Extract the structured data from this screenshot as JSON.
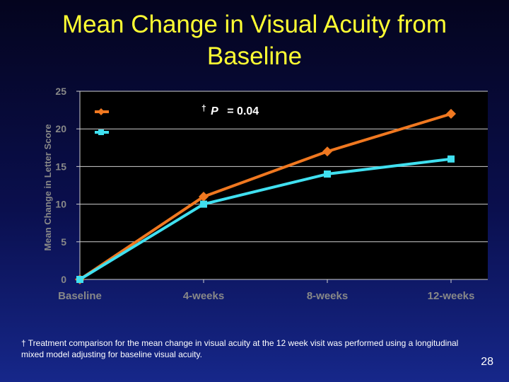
{
  "slide": {
    "title_line1": "Mean Change in Visual Acuity from",
    "title_line2": "Baseline",
    "footnote": "† Treatment comparison for the mean change in visual acuity at the 12 week visit was performed using a longitudinal mixed model adjusting for baseline visual acuity.",
    "page_number": "28"
  },
  "chart_data": {
    "type": "line",
    "categories": [
      "Baseline",
      "4-weeks",
      "8-weeks",
      "12-weeks"
    ],
    "series": [
      {
        "values": [
          0,
          11,
          17,
          22
        ],
        "color": "#f07820",
        "marker": "diamond"
      },
      {
        "values": [
          0,
          10,
          14,
          16
        ],
        "color": "#40e0f0",
        "marker": "square"
      }
    ],
    "ylabel": "Mean Change in Letter Score",
    "ylim": [
      0,
      25
    ],
    "yticks": [
      0,
      5,
      10,
      15,
      20,
      25
    ],
    "annotation": {
      "dagger": "†",
      "p_label": "P",
      "p_value": "= 0.04"
    },
    "grid": true,
    "legend": "top-left",
    "plot_background": "#000000",
    "gridline_color": "#cfcfcf",
    "tick_label_color": "#888888"
  }
}
